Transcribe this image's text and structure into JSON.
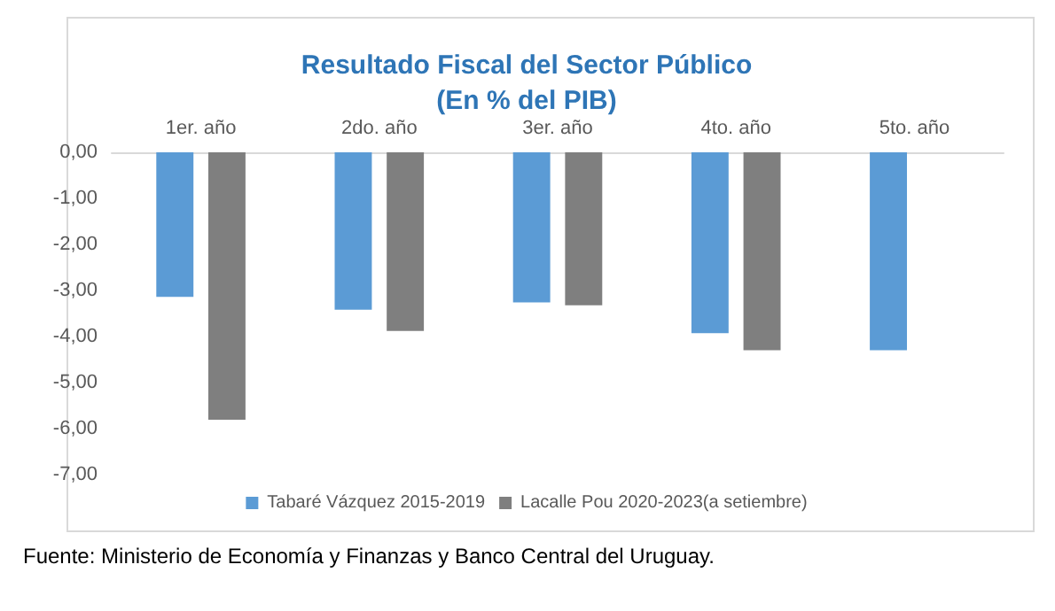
{
  "chart_data": {
    "type": "bar",
    "title": "Resultado Fiscal del Sector Público\n(En % del PIB)",
    "categories": [
      "1er. año",
      "2do. año",
      "3er. año",
      "4to. año",
      "5to. año"
    ],
    "series": [
      {
        "name": "Tabaré Vázquez 2015-2019",
        "color": "#5b9bd5",
        "values": [
          -3.14,
          -3.42,
          -3.26,
          -3.93,
          -4.3
        ]
      },
      {
        "name": "Lacalle Pou 2020-2023(a setiembre)",
        "color": "#7f7f7f",
        "values": [
          -5.81,
          -3.88,
          -3.32,
          -4.3,
          null
        ]
      }
    ],
    "ylim": [
      -7,
      0
    ],
    "yticks": [
      {
        "value": 0,
        "label": "0,00"
      },
      {
        "value": -1,
        "label": "-1,00"
      },
      {
        "value": -2,
        "label": "-2,00"
      },
      {
        "value": -3,
        "label": "-3,00"
      },
      {
        "value": -4,
        "label": "-4,00"
      },
      {
        "value": -5,
        "label": "-5,00"
      },
      {
        "value": -6,
        "label": "-6,00"
      },
      {
        "value": -7,
        "label": "-7,00"
      }
    ],
    "grid": false,
    "legend": "bottom",
    "annotations": [
      "Fuente: Ministerio de Economía y Finanzas y Banco Central del Uruguay."
    ]
  }
}
